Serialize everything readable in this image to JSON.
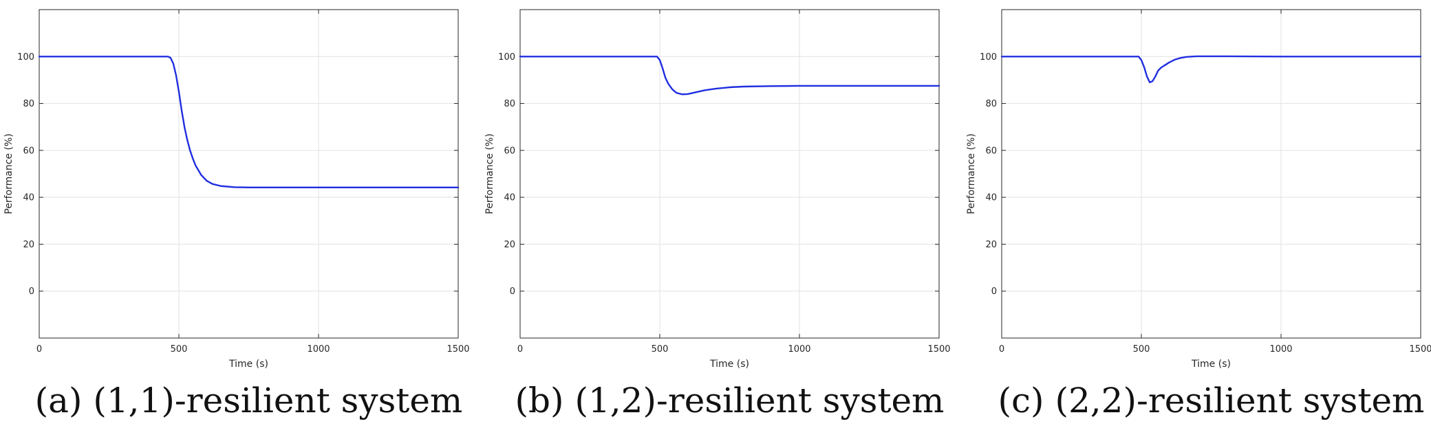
{
  "chart_data": [
    {
      "type": "line",
      "caption": "(a) (1,1)-resilient system",
      "xlabel": "Time (s)",
      "ylabel": "Performance (%)",
      "xlim": [
        0,
        1500
      ],
      "ylim": [
        -20,
        120
      ],
      "xticks": [
        0,
        500,
        1000,
        1500
      ],
      "yticks": [
        0,
        20,
        40,
        60,
        80,
        100
      ],
      "grid": true,
      "series": [
        {
          "color": "#1f2ee0",
          "x": [
            0,
            460,
            470,
            480,
            490,
            500,
            510,
            520,
            530,
            540,
            550,
            560,
            580,
            600,
            620,
            650,
            700,
            750,
            800,
            1000,
            1200,
            1500
          ],
          "y": [
            100,
            100,
            99.5,
            97,
            92,
            85,
            77,
            70,
            64.5,
            60,
            56.5,
            53.5,
            49.5,
            47,
            45.7,
            44.8,
            44.3,
            44.2,
            44.2,
            44.2,
            44.2,
            44.2
          ]
        }
      ]
    },
    {
      "type": "line",
      "caption": "(b) (1,2)-resilient system",
      "xlabel": "Time (s)",
      "ylabel": "Performance (%)",
      "xlim": [
        0,
        1500
      ],
      "ylim": [
        -20,
        120
      ],
      "xticks": [
        0,
        500,
        1000,
        1500
      ],
      "yticks": [
        0,
        20,
        40,
        60,
        80,
        100
      ],
      "grid": true,
      "series": [
        {
          "color": "#1f2ee0",
          "x": [
            0,
            490,
            500,
            510,
            520,
            530,
            545,
            560,
            580,
            600,
            630,
            660,
            700,
            750,
            800,
            900,
            1000,
            1200,
            1500
          ],
          "y": [
            100,
            100,
            98.5,
            95,
            91,
            88.5,
            86,
            84.5,
            83.9,
            84,
            84.8,
            85.6,
            86.3,
            86.9,
            87.2,
            87.4,
            87.5,
            87.5,
            87.5
          ]
        }
      ]
    },
    {
      "type": "line",
      "caption": "(c) (2,2)-resilient system",
      "xlabel": "Time (s)",
      "ylabel": "Performance (%)",
      "xlim": [
        0,
        1500
      ],
      "ylim": [
        -20,
        120
      ],
      "xticks": [
        0,
        500,
        1000,
        1500
      ],
      "yticks": [
        0,
        20,
        40,
        60,
        80,
        100
      ],
      "grid": true,
      "series": [
        {
          "color": "#1f2ee0",
          "x": [
            0,
            490,
            500,
            510,
            520,
            530,
            540,
            550,
            560,
            570,
            580,
            600,
            620,
            640,
            660,
            680,
            700,
            800,
            1000,
            1200,
            1500
          ],
          "y": [
            100,
            100,
            98.5,
            95.5,
            91.5,
            89,
            89.5,
            91.5,
            94,
            95.2,
            96,
            97.5,
            98.7,
            99.4,
            99.8,
            100,
            100.1,
            100.1,
            100,
            100,
            100
          ]
        }
      ]
    }
  ]
}
